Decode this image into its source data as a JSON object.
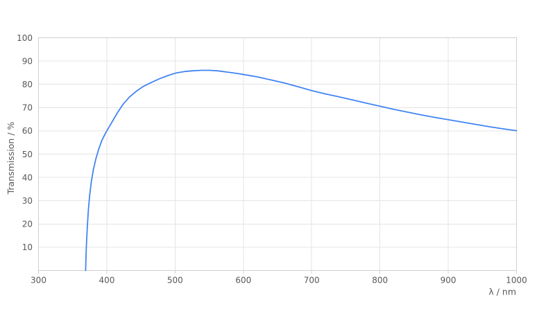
{
  "chart_data": {
    "type": "line",
    "title": "",
    "xlabel": "λ / nm",
    "ylabel": "Transmission / %",
    "xlim": [
      300,
      1000
    ],
    "ylim": [
      0,
      100
    ],
    "xticks": [
      300,
      400,
      500,
      600,
      700,
      800,
      900,
      1000
    ],
    "yticks": [
      10,
      20,
      30,
      40,
      50,
      60,
      70,
      80,
      90,
      100
    ],
    "grid": true,
    "legend_position": "none",
    "series": [
      {
        "name": "Transmission",
        "color": "#4184f3",
        "x": [
          369,
          370,
          371.5,
          373,
          375,
          377.5,
          380.5,
          384,
          388,
          393,
          398,
          403,
          409,
          416,
          424,
          433,
          443,
          454,
          466,
          478,
          490,
          502,
          514,
          526,
          538,
          550,
          562,
          575,
          590,
          605,
          620,
          640,
          660,
          680,
          700,
          720,
          740,
          760,
          780,
          800,
          820,
          840,
          860,
          880,
          900,
          920,
          940,
          960,
          980,
          1000
        ],
        "y": [
          0,
          10,
          19,
          26,
          32.5,
          38.5,
          43.5,
          48,
          52,
          56,
          59,
          61.5,
          64.5,
          68,
          71.5,
          74.5,
          77,
          79.2,
          80.9,
          82.5,
          83.8,
          84.9,
          85.5,
          85.8,
          86,
          86,
          85.8,
          85.3,
          84.7,
          84,
          83.2,
          81.9,
          80.6,
          79,
          77.3,
          75.9,
          74.6,
          73.3,
          71.9,
          70.6,
          69.3,
          68.1,
          66.9,
          65.8,
          64.8,
          63.8,
          62.8,
          61.8,
          60.9,
          60.1
        ]
      }
    ]
  },
  "colors": {
    "line": "#4184f3",
    "gridline": "#e4e4e4",
    "axis_border": "#cfcfcf",
    "tick_text": "#575757",
    "background": "#ffffff"
  }
}
